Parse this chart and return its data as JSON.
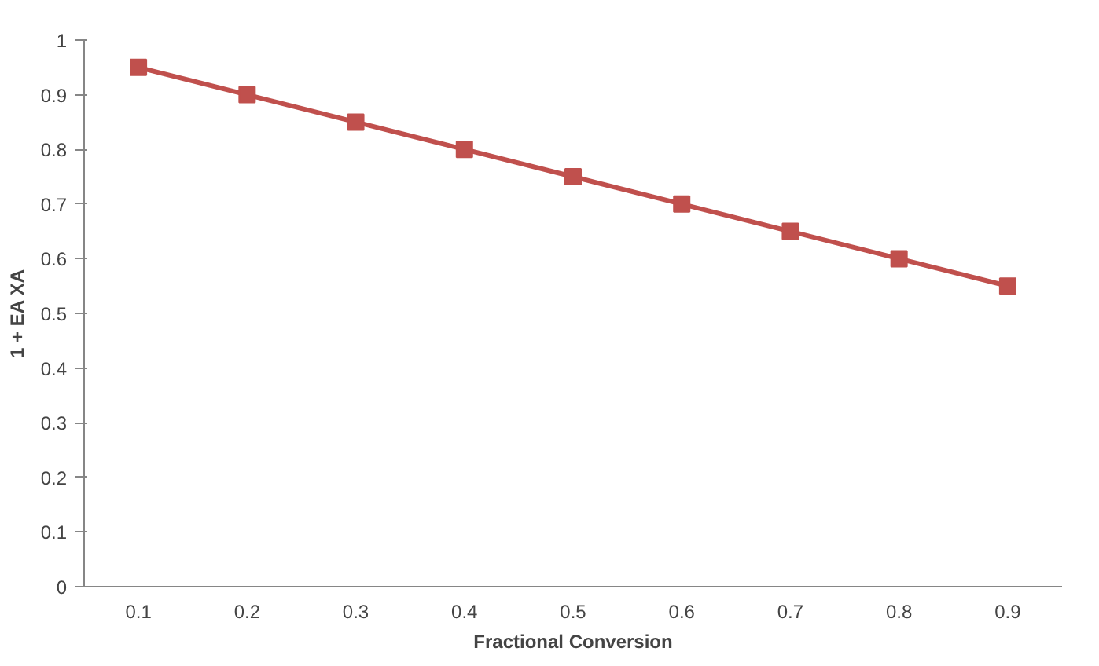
{
  "chart_data": {
    "type": "line",
    "xlabel": "Fractional Conversion",
    "ylabel": "1 + EA XA",
    "categories": [
      "0.1",
      "0.2",
      "0.3",
      "0.4",
      "0.5",
      "0.6",
      "0.7",
      "0.8",
      "0.9"
    ],
    "series": [
      {
        "color": "#c0504d",
        "values": [
          0.95,
          0.9,
          0.85,
          0.8,
          0.75,
          0.7,
          0.65,
          0.6,
          0.55
        ]
      }
    ],
    "ylim": [
      0,
      1
    ],
    "yticks": [
      0,
      0.1,
      0.2,
      0.3,
      0.4,
      0.5,
      0.6,
      0.7,
      0.8,
      0.9,
      1
    ],
    "marker": "square",
    "line_style": "solid"
  }
}
